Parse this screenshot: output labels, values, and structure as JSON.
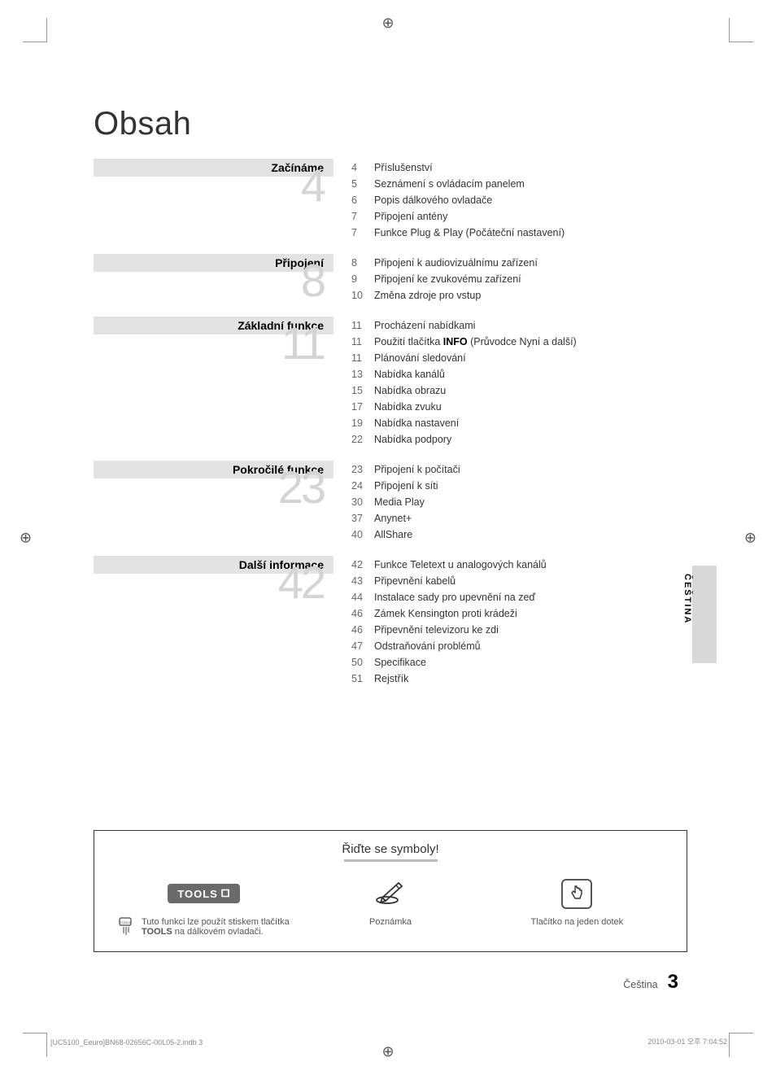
{
  "page": {
    "title": "Obsah",
    "footer_lang": "Čeština",
    "footer_page": "3",
    "footer_left": "[UC5100_Eeuro]BN68-02656C-00L05-2.indb   3",
    "footer_right": "2010-03-01   오후 7:04:52"
  },
  "sections": [
    {
      "heading": "Začínáme",
      "big": "4",
      "items": [
        {
          "pg": "4",
          "txt": "Příslušenství"
        },
        {
          "pg": "5",
          "txt": "Seznámení s ovládacím panelem"
        },
        {
          "pg": "6",
          "txt": "Popis dálkového ovladače"
        },
        {
          "pg": "7",
          "txt": "Připojení antény"
        },
        {
          "pg": "7",
          "txt": "Funkce Plug & Play (Počáteční nastavení)"
        }
      ]
    },
    {
      "heading": "Připojení",
      "big": "8",
      "items": [
        {
          "pg": "8",
          "txt": "Připojení k audiovizuálnímu zařízení"
        },
        {
          "pg": "9",
          "txt": "Připojení ke zvukovému zařízení"
        },
        {
          "pg": "10",
          "txt": "Změna zdroje pro vstup"
        }
      ]
    },
    {
      "heading": "Základní funkce",
      "big": "11",
      "items": [
        {
          "pg": "11",
          "txt": "Procházení nabídkami"
        },
        {
          "pg": "11",
          "txt": "Použití tlačítka",
          "bold": "INFO",
          "txt2": " (Průvodce Nyní a další)"
        },
        {
          "pg": "11",
          "txt": "Plánování sledování"
        },
        {
          "pg": "13",
          "txt": "Nabídka kanálů"
        },
        {
          "pg": "15",
          "txt": "Nabídka obrazu"
        },
        {
          "pg": "17",
          "txt": "Nabídka zvuku"
        },
        {
          "pg": "19",
          "txt": "Nabídka nastavení"
        },
        {
          "pg": "22",
          "txt": "Nabídka podpory"
        }
      ]
    },
    {
      "heading": "Pokročilé funkce",
      "big": "23",
      "items": [
        {
          "pg": "23",
          "txt": "Připojení k počítači"
        },
        {
          "pg": "24",
          "txt": "Připojení k síti"
        },
        {
          "pg": "30",
          "txt": "Media Play"
        },
        {
          "pg": "37",
          "txt": "Anynet+"
        },
        {
          "pg": "40",
          "txt": "AllShare"
        }
      ]
    },
    {
      "heading": "Další informace",
      "big": "42",
      "items": [
        {
          "pg": "42",
          "txt": "Funkce Teletext u analogových kanálů"
        },
        {
          "pg": "43",
          "txt": "Připevnění kabelů"
        },
        {
          "pg": "44",
          "txt": "Instalace sady pro upevnění na zeď"
        },
        {
          "pg": "46",
          "txt": "Zámek Kensington proti krádeži"
        },
        {
          "pg": "46",
          "txt": "Připevnění televizoru ke zdi"
        },
        {
          "pg": "47",
          "txt": "Odstraňování problémů"
        },
        {
          "pg": "50",
          "txt": "Specifikace"
        },
        {
          "pg": "51",
          "txt": "Rejstřík"
        }
      ]
    }
  ],
  "lang_tab": "ČEŠTINA",
  "symbols": {
    "title": "Řiďte se symboly!",
    "tools_label": "TOOLS",
    "tools_caption_1": "Tuto funkci lze použít stiskem tlačítka",
    "tools_caption_bold": "TOOLS",
    "tools_caption_2": " na dálkovém ovladači.",
    "note_label": "Poznámka",
    "touch_label": "Tlačítko na jeden dotek"
  }
}
